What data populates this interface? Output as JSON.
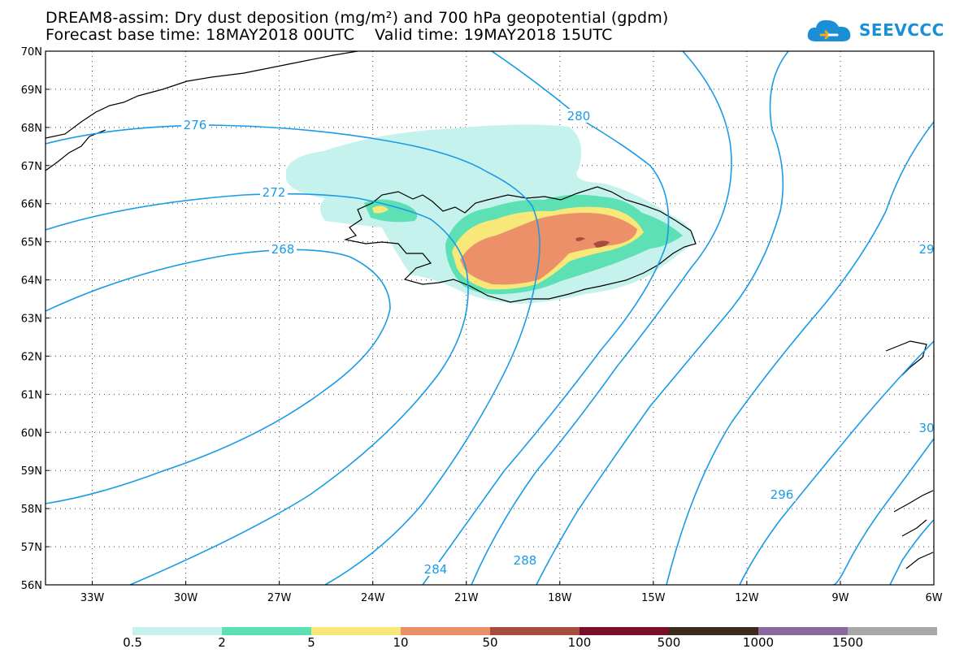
{
  "header": {
    "line1": "DREAM8-assim: Dry dust deposition (mg/m²) and 700 hPa geopotential (gpdm)",
    "line2": "Forecast base time: 18MAY2018 00UTC    Valid time: 19MAY2018 15UTC"
  },
  "logo": {
    "text": "SEEVCCC",
    "icon": "cloud-icon",
    "color": "#1a8fd6"
  },
  "map": {
    "lon_range": [
      -34.5,
      -6
    ],
    "lat_range": [
      56,
      70
    ],
    "lat_labels": [
      "70N",
      "69N",
      "68N",
      "67N",
      "66N",
      "65N",
      "64N",
      "63N",
      "62N",
      "61N",
      "60N",
      "59N",
      "58N",
      "57N",
      "56N"
    ],
    "lon_labels": [
      "33W",
      "30W",
      "27W",
      "24W",
      "21W",
      "18W",
      "15W",
      "12W",
      "9W",
      "6W"
    ],
    "grid": true,
    "contour_color": "#1a9be6",
    "contour_labels": [
      {
        "text": "276"
      },
      {
        "text": "272"
      },
      {
        "text": "268"
      },
      {
        "text": "280"
      },
      {
        "text": "284"
      },
      {
        "text": "288"
      },
      {
        "text": "296"
      },
      {
        "text": "29"
      },
      {
        "text": "30"
      }
    ]
  },
  "colorbar": {
    "labels": [
      "0.5",
      "2",
      "5",
      "10",
      "50",
      "100",
      "500",
      "1000",
      "1500"
    ],
    "colors": [
      "#c5f2ec",
      "#5ce0b4",
      "#f7e879",
      "#ec9069",
      "#a64d3d",
      "#7a0f2a",
      "#3b2a1c",
      "#8a6a9e",
      "#a8a8a8"
    ]
  }
}
